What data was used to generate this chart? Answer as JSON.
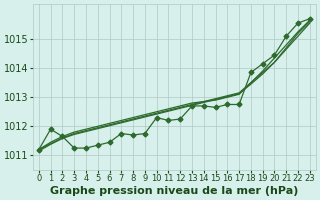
{
  "x": [
    0,
    1,
    2,
    3,
    4,
    5,
    6,
    7,
    8,
    9,
    10,
    11,
    12,
    13,
    14,
    15,
    16,
    17,
    18,
    19,
    20,
    21,
    22,
    23
  ],
  "main_line": [
    1011.2,
    1011.9,
    1011.65,
    1011.25,
    1011.25,
    1011.35,
    1011.45,
    1011.75,
    1011.7,
    1011.75,
    1012.3,
    1012.2,
    1012.25,
    1012.7,
    1012.7,
    1012.65,
    1012.75,
    1012.75,
    1013.85,
    1014.15,
    1014.45,
    1015.1,
    1015.55,
    1015.7
  ],
  "lineA": [
    1011.2,
    1011.4,
    1011.6,
    1011.75,
    1011.85,
    1011.95,
    1012.05,
    1012.15,
    1012.25,
    1012.35,
    1012.45,
    1012.55,
    1012.65,
    1012.75,
    1012.85,
    1012.95,
    1013.05,
    1013.15,
    1013.5,
    1013.85,
    1014.2,
    1014.65,
    1015.1,
    1015.55
  ],
  "lineB": [
    1011.2,
    1011.45,
    1011.65,
    1011.8,
    1011.9,
    1012.0,
    1012.1,
    1012.2,
    1012.3,
    1012.4,
    1012.5,
    1012.6,
    1012.7,
    1012.8,
    1012.85,
    1012.9,
    1013.0,
    1013.1,
    1013.5,
    1013.9,
    1014.35,
    1014.8,
    1015.25,
    1015.65
  ],
  "lineC": [
    1011.15,
    1011.38,
    1011.58,
    1011.72,
    1011.82,
    1011.92,
    1012.02,
    1012.12,
    1012.22,
    1012.32,
    1012.42,
    1012.52,
    1012.62,
    1012.72,
    1012.82,
    1012.92,
    1013.02,
    1013.12,
    1013.45,
    1013.8,
    1014.2,
    1014.7,
    1015.2,
    1015.6
  ],
  "line_color": "#2d6a2d",
  "bg_color": "#d8f0ec",
  "grid_color": "#b0c8c4",
  "xlabel": "Graphe pression niveau de la mer (hPa)",
  "ylabel_ticks": [
    1011,
    1012,
    1013,
    1014,
    1015
  ],
  "ylim": [
    1010.5,
    1016.2
  ],
  "xlim": [
    -0.5,
    23.5
  ],
  "tick_color": "#1a4a1a",
  "xlabel_fontsize": 8,
  "tick_fontsize": 7
}
